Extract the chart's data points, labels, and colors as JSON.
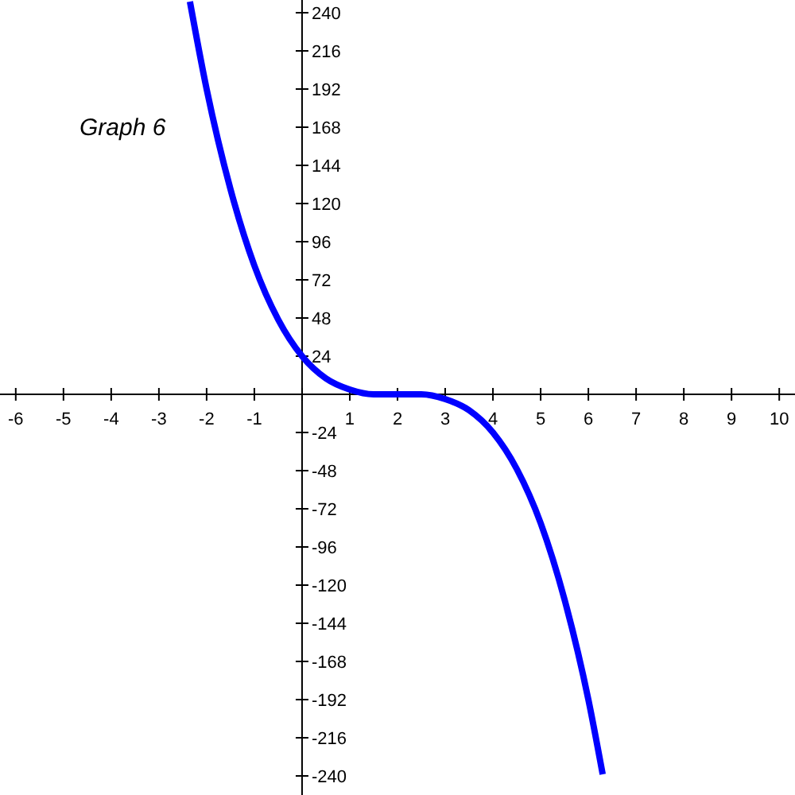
{
  "chart_data": {
    "type": "line",
    "annotations": [
      "Graph 6"
    ],
    "x": [
      -2.35,
      -2,
      -1.5,
      -1,
      -0.5,
      0,
      0.5,
      1,
      1.5,
      2,
      2.5,
      3,
      3.5,
      4,
      4.5,
      5,
      5.5,
      6,
      6.3
    ],
    "series": [
      {
        "color": "#0000ff",
        "values": [
          247,
          192,
          129,
          81,
          47,
          24,
          10,
          3,
          0,
          0,
          0,
          -3,
          -10,
          -24,
          -47,
          -81,
          -129,
          -192,
          -239
        ]
      }
    ],
    "xlim": [
      -6.33,
      10.33
    ],
    "ylim": [
      -252,
      248
    ],
    "xticks": [
      -6,
      -5,
      -4,
      -3,
      -2,
      -1,
      {
        "value": 0,
        "label": null
      },
      1,
      2,
      3,
      4,
      5,
      6,
      7,
      8,
      9,
      10
    ],
    "yticks": [
      -240,
      -216,
      -192,
      -168,
      -144,
      -120,
      -96,
      -72,
      -48,
      -24,
      {
        "value": 0,
        "label": null
      },
      24,
      48,
      72,
      96,
      120,
      144,
      168,
      192,
      216,
      240
    ],
    "grid": false,
    "marker": "none",
    "line_style": "solid"
  }
}
